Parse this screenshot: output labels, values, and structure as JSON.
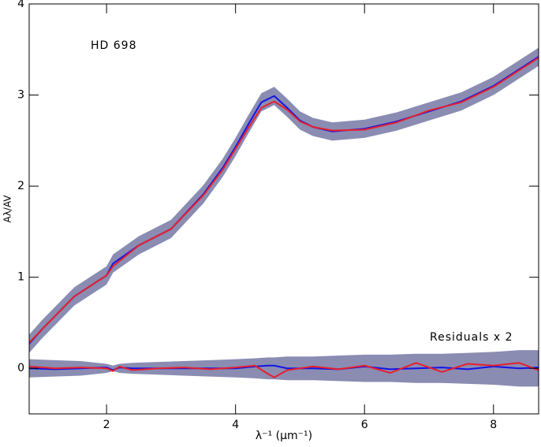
{
  "chart_data": {
    "type": "line",
    "xlabel": "λ⁻¹ (μm⁻¹)",
    "ylabel": "Aλ/AV",
    "annotations": [
      "HD 698",
      "Residuals x 2"
    ],
    "xlim": [
      0.8,
      8.7
    ],
    "ylim": [
      -0.5,
      4
    ],
    "xticks": [
      2,
      4,
      6,
      8
    ],
    "yticks": [
      0,
      1,
      2,
      3,
      4
    ],
    "x": [
      0.8,
      1.0,
      1.5,
      2.0,
      2.1,
      2.5,
      3.0,
      3.5,
      3.8,
      4.0,
      4.2,
      4.4,
      4.6,
      4.8,
      5.0,
      5.2,
      5.5,
      6.0,
      6.5,
      7.0,
      7.5,
      8.0,
      8.7
    ],
    "band": {
      "color": "#8a8cb2",
      "upper": [
        0.37,
        0.53,
        0.89,
        1.12,
        1.25,
        1.45,
        1.63,
        2.01,
        2.3,
        2.53,
        2.78,
        3.02,
        3.09,
        2.96,
        2.82,
        2.75,
        2.7,
        2.73,
        2.81,
        2.92,
        3.03,
        3.2,
        3.52
      ],
      "lower": [
        0.17,
        0.33,
        0.69,
        0.92,
        1.05,
        1.25,
        1.43,
        1.81,
        2.1,
        2.33,
        2.58,
        2.82,
        2.89,
        2.76,
        2.62,
        2.55,
        2.5,
        2.53,
        2.61,
        2.72,
        2.83,
        3.0,
        3.32
      ]
    },
    "series": [
      {
        "color": "#1414e6",
        "values": [
          0.27,
          0.43,
          0.79,
          1.02,
          1.15,
          1.35,
          1.53,
          1.91,
          2.2,
          2.43,
          2.68,
          2.92,
          2.99,
          2.86,
          2.72,
          2.65,
          2.6,
          2.63,
          2.71,
          2.82,
          2.93,
          3.1,
          3.42
        ]
      },
      {
        "color": "#e6202c",
        "values": [
          0.28,
          0.43,
          0.79,
          1.02,
          1.12,
          1.35,
          1.53,
          1.9,
          2.18,
          2.41,
          2.64,
          2.86,
          2.93,
          2.84,
          2.71,
          2.65,
          2.61,
          2.62,
          2.7,
          2.83,
          2.92,
          3.09,
          3.41
        ]
      }
    ],
    "residuals": {
      "x": [
        0.8,
        1.2,
        1.6,
        2.0,
        2.1,
        2.2,
        2.4,
        2.8,
        3.2,
        3.6,
        4.0,
        4.3,
        4.5,
        4.6,
        4.8,
        5.2,
        5.6,
        6.0,
        6.4,
        6.8,
        7.2,
        7.6,
        8.0,
        8.4,
        8.7
      ],
      "band": {
        "color": "#8a8cb2",
        "upper": [
          0.1,
          0.09,
          0.08,
          0.05,
          0.03,
          0.05,
          0.06,
          0.07,
          0.08,
          0.09,
          0.1,
          0.11,
          0.12,
          0.12,
          0.13,
          0.13,
          0.14,
          0.15,
          0.15,
          0.16,
          0.16,
          0.17,
          0.18,
          0.2,
          0.2
        ],
        "lower": [
          -0.1,
          -0.09,
          -0.08,
          -0.05,
          -0.03,
          -0.05,
          -0.06,
          -0.07,
          -0.08,
          -0.09,
          -0.1,
          -0.11,
          -0.12,
          -0.12,
          -0.13,
          -0.13,
          -0.14,
          -0.15,
          -0.15,
          -0.16,
          -0.16,
          -0.17,
          -0.18,
          -0.2,
          -0.2
        ]
      },
      "series": [
        {
          "color": "#1414e6",
          "values": [
            0,
            -0.01,
            0,
            0.01,
            -0.02,
            0.01,
            0,
            0,
            0,
            0,
            0,
            0.02,
            0.03,
            0.03,
            0,
            0,
            -0.01,
            0.02,
            -0.01,
            0,
            0.01,
            -0.01,
            0.02,
            0,
            0.01
          ]
        },
        {
          "color": "#e6202c",
          "values": [
            0.02,
            0,
            0.01,
            0,
            -0.03,
            0.02,
            -0.02,
            0,
            0.01,
            -0.01,
            0.01,
            0.03,
            -0.06,
            -0.1,
            -0.02,
            0.02,
            -0.01,
            0.03,
            -0.05,
            0.06,
            -0.04,
            0.05,
            0.03,
            0.06,
            -0.02
          ]
        }
      ]
    }
  }
}
